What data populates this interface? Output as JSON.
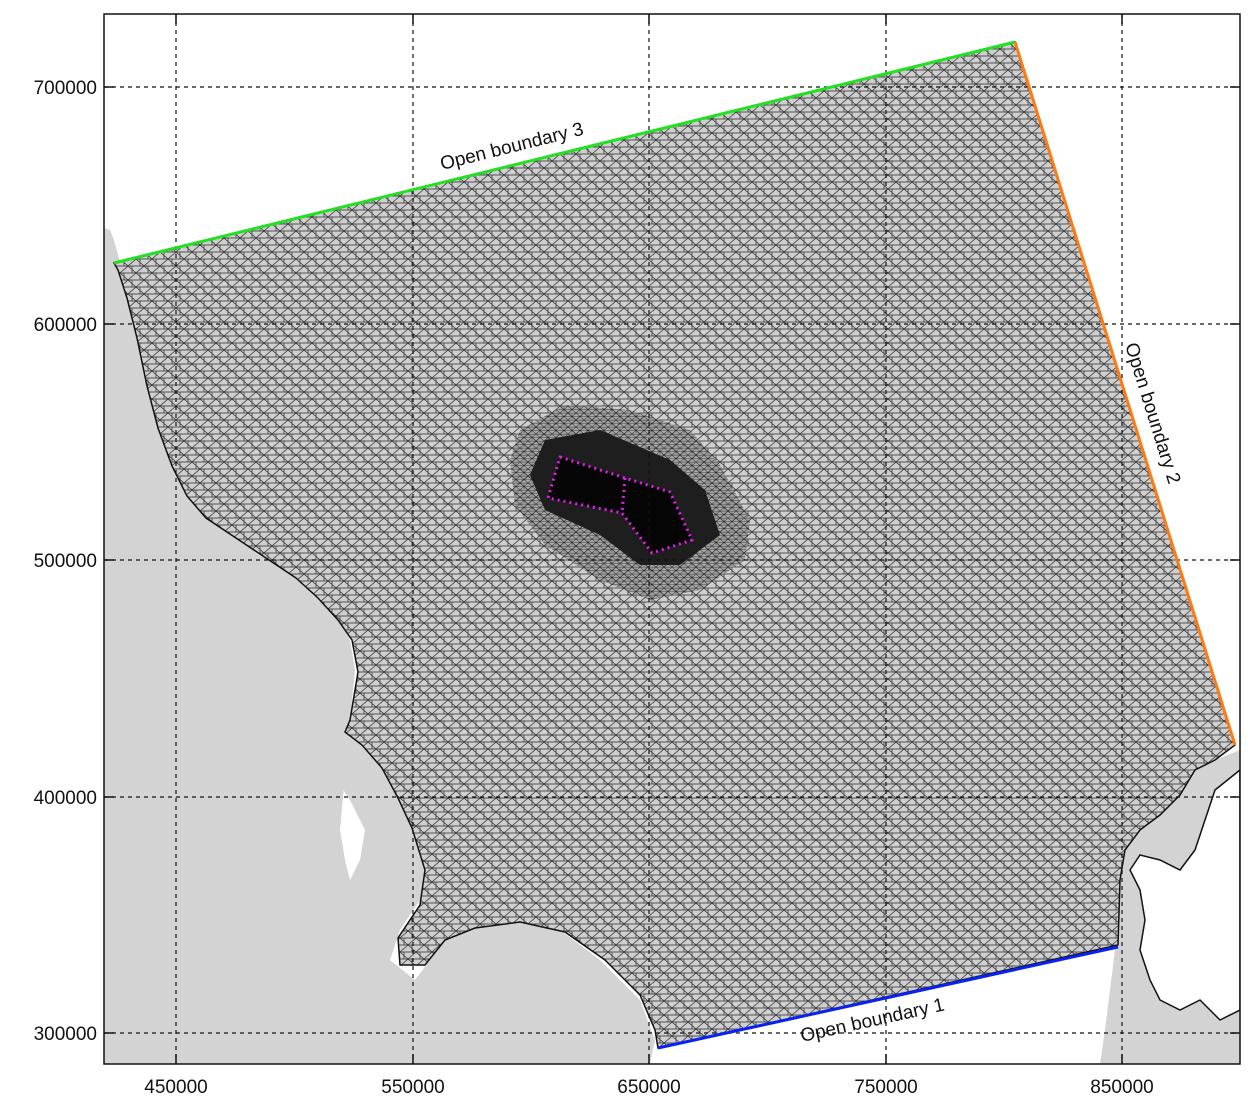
{
  "map": {
    "x_ticks": [
      "450000",
      "550000",
      "650000",
      "750000",
      "850000"
    ],
    "y_ticks": [
      "700000",
      "600000",
      "500000",
      "400000",
      "300000"
    ],
    "boundaries": [
      {
        "name": "Open boundary 1",
        "color": "#0a22f0"
      },
      {
        "name": "Open boundary 2",
        "color": "#ff7a12"
      },
      {
        "name": "Open boundary 3",
        "color": "#22e022"
      }
    ],
    "colors": {
      "land": "#d3d3d3",
      "mesh": "#111111",
      "focus_area": "#e21ee8"
    }
  }
}
